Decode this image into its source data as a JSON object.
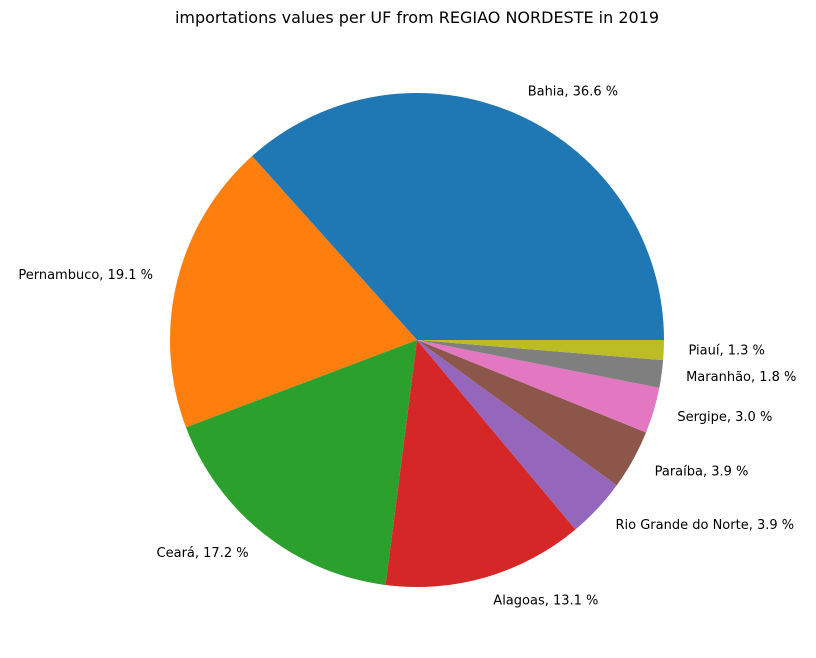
{
  "chart_data": {
    "type": "pie",
    "title": "importations values per UF from REGIAO NORDESTE in 2019",
    "slices": [
      {
        "label": "Bahia, 36.6 %",
        "value": 36.6,
        "color": "#1f77b4"
      },
      {
        "label": "Pernambuco, 19.1 %",
        "value": 19.1,
        "color": "#ff7f0e"
      },
      {
        "label": "Ceará, 17.2 %",
        "value": 17.2,
        "color": "#2ca02c"
      },
      {
        "label": "Alagoas, 13.1 %",
        "value": 13.1,
        "color": "#d62728"
      },
      {
        "label": "Rio Grande do Norte, 3.9 %",
        "value": 3.9,
        "color": "#9467bd"
      },
      {
        "label": "Paraíba, 3.9 %",
        "value": 3.9,
        "color": "#8c564b"
      },
      {
        "label": "Sergipe, 3.0 %",
        "value": 3.0,
        "color": "#e377c2"
      },
      {
        "label": "Maranhão, 1.8 %",
        "value": 1.8,
        "color": "#7f7f7f"
      },
      {
        "label": "Piauí, 1.3 %",
        "value": 1.3,
        "color": "#bcbd22"
      }
    ]
  }
}
